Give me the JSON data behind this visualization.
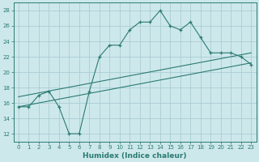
{
  "xlabel": "Humidex (Indice chaleur)",
  "xlim": [
    -0.5,
    23.5
  ],
  "ylim": [
    11,
    29
  ],
  "yticks": [
    12,
    14,
    16,
    18,
    20,
    22,
    24,
    26,
    28
  ],
  "xticks": [
    0,
    1,
    2,
    3,
    4,
    5,
    6,
    7,
    8,
    9,
    10,
    11,
    12,
    13,
    14,
    15,
    16,
    17,
    18,
    19,
    20,
    21,
    22,
    23
  ],
  "bg_color": "#cde8eb",
  "line_color": "#2a7a72",
  "grid_color": "#aacdd4",
  "main_x": [
    0,
    1,
    2,
    3,
    4,
    5,
    6,
    7,
    8,
    9,
    10,
    11,
    12,
    13,
    14,
    15,
    16,
    17,
    18,
    19,
    20,
    21,
    22,
    23
  ],
  "main_y": [
    15.5,
    15.5,
    17.0,
    17.5,
    15.5,
    12.0,
    12.0,
    17.5,
    22.0,
    23.5,
    23.5,
    25.5,
    26.5,
    26.5,
    28.0,
    26.0,
    25.5,
    26.5,
    24.5,
    22.5,
    22.5,
    22.5,
    22.0,
    21.0
  ],
  "line1_x": [
    0,
    23
  ],
  "line1_y": [
    15.5,
    21.2
  ],
  "line2_x": [
    0,
    23
  ],
  "line2_y": [
    16.8,
    22.5
  ],
  "tick_fontsize": 5.0,
  "xlabel_fontsize": 6.5,
  "marker_size": 3.0,
  "linewidth": 0.8
}
